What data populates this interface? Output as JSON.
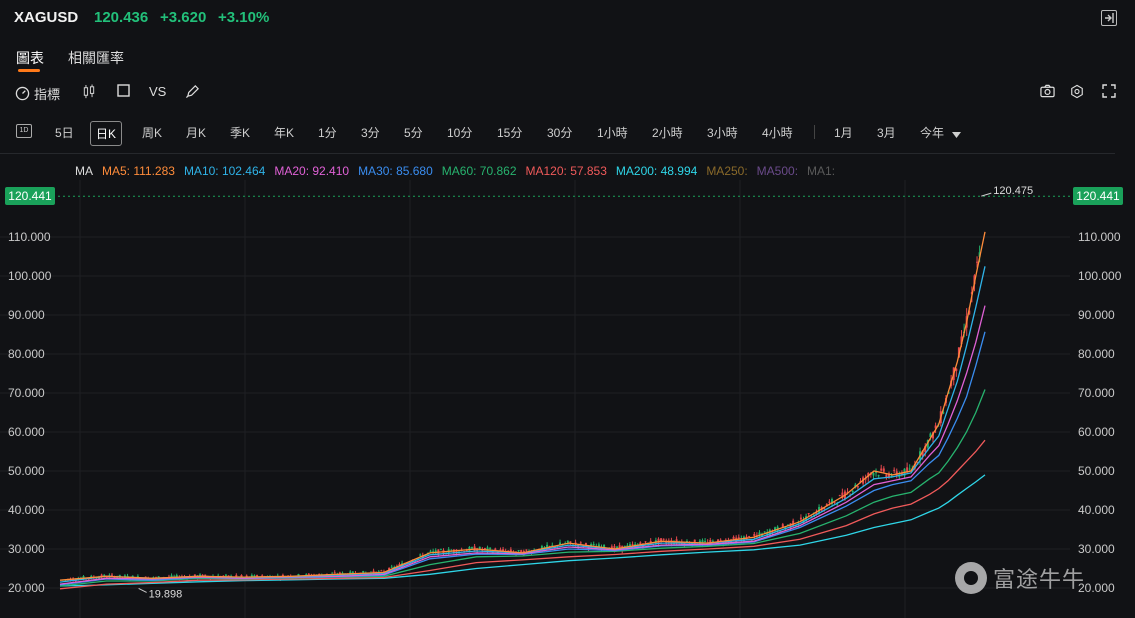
{
  "header": {
    "symbol": "XAGUSD",
    "price": "120.436",
    "change": "+3.620",
    "change_pct": "+3.10%",
    "exit_icon": "exit-fullscreen-icon"
  },
  "tabs": [
    {
      "label": "圖表",
      "active": true
    },
    {
      "label": "相關匯率",
      "active": false
    }
  ],
  "toolbar": {
    "indicators_label": "指標",
    "candle_icon": "candlestick-icon",
    "rect_icon": "rectangle-icon",
    "vs_label": "VS",
    "draw_icon": "pen-icon",
    "right_icons": [
      "camera-icon",
      "settings-icon",
      "fullscreen-icon"
    ]
  },
  "periods": {
    "first_icon_label": "1D",
    "items": [
      "5日",
      "日K",
      "周K",
      "月K",
      "季K",
      "年K",
      "1分",
      "3分",
      "5分",
      "10分",
      "15分",
      "30分",
      "1小時",
      "2小時",
      "3小時",
      "4小時",
      "1月",
      "3月",
      "今年"
    ],
    "active": "日K"
  },
  "ma_legend": {
    "label": "MA",
    "items": [
      {
        "text": "MA5: 111.283",
        "color": "#ff8c3a"
      },
      {
        "text": "MA10: 102.464",
        "color": "#2fb3e8"
      },
      {
        "text": "MA20: 92.410",
        "color": "#e061d6"
      },
      {
        "text": "MA30: 85.680",
        "color": "#3a8df0"
      },
      {
        "text": "MA60: 70.862",
        "color": "#27b36e"
      },
      {
        "text": "MA120: 57.853",
        "color": "#f05a5a"
      },
      {
        "text": "MA200: 48.994",
        "color": "#2fd6e8"
      },
      {
        "text": "MA250:",
        "color": "#8a6a2a"
      },
      {
        "text": "MA500:",
        "color": "#6a4a8a"
      },
      {
        "text": "MA1:",
        "color": "#5a5a5a"
      }
    ]
  },
  "current_price_tag": "120.441",
  "high_label": "120.475",
  "low_label": "19.898",
  "chart_data": {
    "type": "line",
    "y_ticks": [
      "110.000",
      "100.000",
      "90.000",
      "80.000",
      "70.000",
      "60.000",
      "50.000",
      "40.000",
      "30.000",
      "20.000"
    ],
    "ylim": [
      18,
      125
    ],
    "x": [
      0,
      5,
      10,
      15,
      20,
      25,
      30,
      35,
      40,
      45,
      50,
      55,
      60,
      65,
      70,
      75,
      80,
      85,
      88,
      90,
      92,
      94,
      95,
      96,
      97,
      98,
      99,
      100
    ],
    "series": [
      {
        "name": "MA5",
        "color": "#ff8c3a",
        "values": [
          22,
          23,
          22.5,
          23,
          22.8,
          23,
          23.5,
          24,
          29,
          30,
          29,
          31.5,
          30,
          32,
          31.5,
          33,
          37,
          44,
          50,
          49,
          50,
          58,
          62,
          70,
          78,
          88,
          100,
          111.3
        ]
      },
      {
        "name": "MA10",
        "color": "#2fb3e8",
        "values": [
          21.5,
          23,
          22.5,
          23,
          22.7,
          22.9,
          23.3,
          23.8,
          28.5,
          29.5,
          29,
          31,
          30,
          31.5,
          31.5,
          32.5,
          36.5,
          43,
          48,
          48.5,
          49.5,
          56,
          59,
          66,
          73,
          82,
          92,
          102.5
        ]
      },
      {
        "name": "MA20",
        "color": "#e061d6",
        "values": [
          21,
          22.5,
          22.3,
          22.8,
          22.5,
          22.8,
          23,
          23.5,
          28,
          29,
          28.8,
          30.5,
          29.8,
          31,
          31.2,
          32,
          36,
          42,
          46.5,
          47.5,
          48.5,
          54,
          56.5,
          62,
          68,
          75,
          83,
          92.4
        ]
      },
      {
        "name": "MA30",
        "color": "#3a8df0",
        "values": [
          20.8,
          22.3,
          22,
          22.7,
          22.4,
          22.7,
          22.9,
          23.3,
          27.5,
          28.7,
          28.6,
          30,
          29.6,
          30.8,
          31,
          31.8,
          35.5,
          41,
          45,
          46.5,
          47.5,
          52,
          54,
          58.5,
          63.5,
          69,
          77,
          85.7
        ]
      },
      {
        "name": "MA60",
        "color": "#27b36e",
        "values": [
          20.5,
          21.8,
          21.8,
          22.5,
          22.3,
          22.6,
          22.8,
          23,
          26,
          28,
          28.2,
          29.2,
          29.4,
          30.2,
          30.7,
          31.4,
          34,
          38.5,
          42,
          43.5,
          44.5,
          48,
          49.5,
          52.5,
          56,
          60,
          65,
          70.9
        ]
      },
      {
        "name": "MA120",
        "color": "#f05a5a",
        "values": [
          19.8,
          21,
          21.4,
          22,
          22.1,
          22.3,
          22.5,
          22.7,
          24.5,
          26.5,
          27.2,
          28,
          28.6,
          29.4,
          30,
          30.7,
          32.5,
          36,
          39,
          40.5,
          41.5,
          44,
          45.5,
          47.5,
          50,
          52.5,
          55,
          57.9
        ]
      },
      {
        "name": "MA200",
        "color": "#2fd6e8",
        "values": [
          20.5,
          20.8,
          21.2,
          21.6,
          21.9,
          22.1,
          22.3,
          22.5,
          23.5,
          25,
          26,
          27,
          27.7,
          28.5,
          29.2,
          29.8,
          31,
          33.5,
          35.5,
          36.5,
          37.5,
          39.5,
          40.5,
          42,
          43.8,
          45.5,
          47.2,
          49
        ]
      }
    ]
  }
}
